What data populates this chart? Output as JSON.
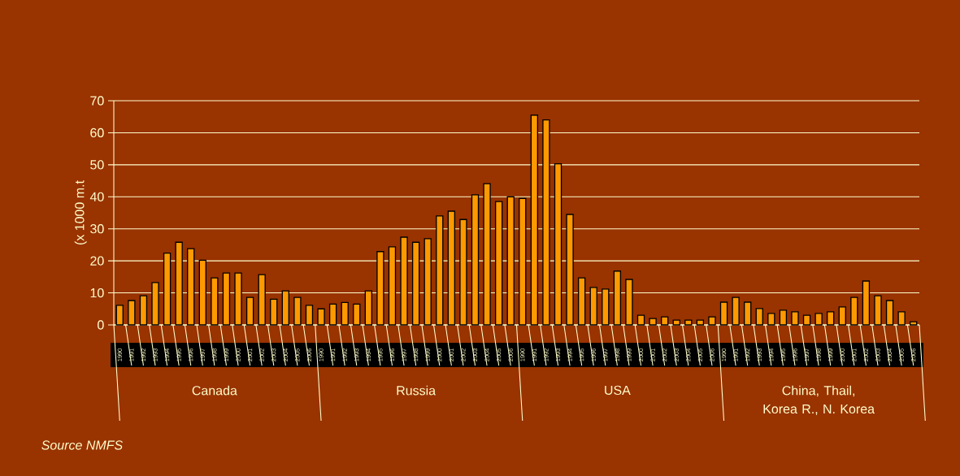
{
  "chart_data": {
    "type": "bar",
    "ylabel": "(x 1000 m.t",
    "categories": [
      "1990",
      "1991",
      "1992",
      "1993",
      "1994",
      "1995",
      "1996",
      "1997",
      "1998",
      "1999",
      "2000",
      "2001",
      "2002",
      "2003",
      "2004",
      "2005",
      "2006",
      "1990",
      "1991",
      "1992",
      "1993",
      "1994",
      "1995",
      "1996",
      "1997",
      "1998",
      "1999",
      "2000",
      "2001",
      "2002",
      "2003",
      "2004",
      "2005",
      "2006",
      "1990",
      "1991",
      "1992",
      "1993",
      "1994",
      "1995",
      "1996",
      "1997",
      "1998",
      "1999",
      "2000",
      "2001",
      "2002",
      "2003",
      "2004",
      "2005",
      "2006",
      "1990",
      "1991",
      "1992",
      "1993",
      "1994",
      "1995",
      "1996",
      "1997",
      "1998",
      "1999",
      "2000",
      "2001",
      "2002",
      "2003",
      "2004",
      "2005",
      "2006"
    ],
    "values": [
      6.1,
      7.6,
      9.1,
      13.2,
      22.4,
      25.8,
      23.8,
      20.2,
      14.7,
      16.2,
      16.2,
      8.6,
      15.7,
      8.0,
      10.6,
      8.6,
      6.1,
      5.0,
      6.5,
      7.0,
      6.5,
      10.6,
      22.9,
      24.4,
      27.4,
      25.8,
      26.9,
      34.0,
      35.5,
      32.9,
      40.6,
      44.1,
      38.5,
      40.0,
      39.5,
      65.5,
      64.0,
      50.3,
      34.5,
      14.7,
      11.7,
      11.2,
      16.8,
      14.2,
      3.0,
      2.0,
      2.5,
      1.5,
      1.5,
      1.5,
      2.5,
      7.1,
      8.6,
      7.1,
      5.1,
      3.6,
      4.6,
      4.1,
      3.0,
      3.6,
      4.1,
      5.6,
      8.6,
      13.7,
      9.1,
      7.6,
      4.1,
      1.0
    ],
    "color": "#ff9900",
    "ylim": [
      0,
      70
    ],
    "yticks": [
      0,
      10,
      20,
      30,
      40,
      50,
      60,
      70
    ],
    "grid": "y",
    "annotations": [
      "Canada",
      "Russia",
      "USA",
      "China, Thail, Korea R., N. Korea",
      "*Source NMFS*"
    ]
  }
}
